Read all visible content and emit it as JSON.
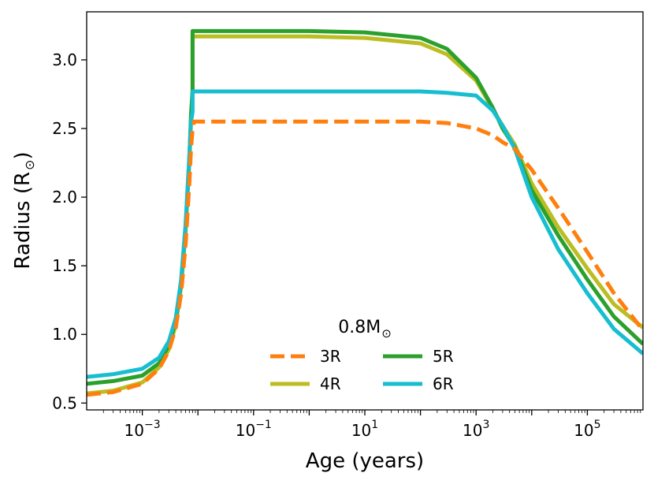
{
  "chart_data": {
    "type": "line",
    "xlabel": "Age (years)",
    "ylabel": "Radius (R",
    "ylabel_sub": "⊙",
    "ylabel_close": ")",
    "xscale": "log",
    "xlim": [
      0.0001,
      1000000
    ],
    "ylim": [
      0.45,
      3.35
    ],
    "grid": false,
    "x_ticks": [
      {
        "value": 0.001,
        "base": "10",
        "exp": "−3"
      },
      {
        "value": 0.1,
        "base": "10",
        "exp": "−1"
      },
      {
        "value": 10,
        "base": "10",
        "exp": "1"
      },
      {
        "value": 1000,
        "base": "10",
        "exp": "3"
      },
      {
        "value": 100000,
        "base": "10",
        "exp": "5"
      }
    ],
    "y_ticks": [
      {
        "value": 0.5,
        "label": "0.5"
      },
      {
        "value": 1.0,
        "label": "1.0"
      },
      {
        "value": 1.5,
        "label": "1.5"
      },
      {
        "value": 2.0,
        "label": "2.0"
      },
      {
        "value": 2.5,
        "label": "2.5"
      },
      {
        "value": 3.0,
        "label": "3.0"
      }
    ],
    "legend": {
      "title": "0.8M",
      "title_sub": "⊙",
      "placement": "lower-center",
      "columns": 2
    },
    "series": [
      {
        "name": "3R",
        "color": "#ff7f0e",
        "style": "dashed",
        "x": [
          0.0001,
          0.0003,
          0.001,
          0.002,
          0.003,
          0.004,
          0.005,
          0.006,
          0.007,
          0.0075,
          0.008,
          0.0085,
          0.01,
          0.1,
          1,
          10,
          100,
          300,
          1000,
          2000,
          3000,
          5000,
          10000,
          30000,
          100000,
          300000,
          1000000
        ],
        "y": [
          0.56,
          0.58,
          0.64,
          0.75,
          0.88,
          1.05,
          1.3,
          1.65,
          2.1,
          2.35,
          2.5,
          2.55,
          2.55,
          2.55,
          2.55,
          2.55,
          2.55,
          2.54,
          2.5,
          2.45,
          2.4,
          2.35,
          2.2,
          1.92,
          1.6,
          1.3,
          1.03
        ]
      },
      {
        "name": "4R",
        "color": "#bcbd22",
        "style": "solid",
        "x": [
          0.0001,
          0.0003,
          0.001,
          0.002,
          0.003,
          0.004,
          0.005,
          0.006,
          0.007,
          0.0075,
          0.008,
          0.00801,
          0.01,
          0.1,
          1,
          10,
          100,
          300,
          1000,
          2000,
          3000,
          5000,
          10000,
          30000,
          100000,
          300000,
          1000000
        ],
        "y": [
          0.57,
          0.59,
          0.65,
          0.76,
          0.89,
          1.07,
          1.35,
          1.75,
          2.25,
          2.55,
          2.75,
          3.17,
          3.17,
          3.17,
          3.17,
          3.16,
          3.12,
          3.04,
          2.85,
          2.64,
          2.52,
          2.38,
          2.1,
          1.78,
          1.48,
          1.22,
          1.05
        ]
      },
      {
        "name": "5R",
        "color": "#2ca02c",
        "style": "solid",
        "x": [
          0.0001,
          0.0003,
          0.001,
          0.002,
          0.003,
          0.004,
          0.005,
          0.006,
          0.007,
          0.0075,
          0.008,
          0.00801,
          0.01,
          0.1,
          1,
          10,
          100,
          300,
          1000,
          2000,
          3000,
          5000,
          10000,
          30000,
          100000,
          300000,
          1000000
        ],
        "y": [
          0.64,
          0.66,
          0.7,
          0.79,
          0.92,
          1.1,
          1.38,
          1.78,
          2.28,
          2.6,
          2.78,
          3.21,
          3.21,
          3.21,
          3.21,
          3.2,
          3.16,
          3.08,
          2.87,
          2.65,
          2.5,
          2.36,
          2.05,
          1.72,
          1.4,
          1.13,
          0.93
        ]
      },
      {
        "name": "6R",
        "color": "#17becf",
        "style": "solid",
        "x": [
          0.0001,
          0.0003,
          0.001,
          0.002,
          0.003,
          0.004,
          0.005,
          0.006,
          0.007,
          0.0075,
          0.008,
          0.00801,
          0.01,
          0.1,
          1,
          10,
          100,
          300,
          1000,
          2000,
          3000,
          5000,
          10000,
          30000,
          100000,
          300000,
          1000000
        ],
        "y": [
          0.69,
          0.71,
          0.75,
          0.83,
          0.95,
          1.12,
          1.4,
          1.8,
          2.3,
          2.55,
          2.62,
          2.77,
          2.77,
          2.77,
          2.77,
          2.77,
          2.77,
          2.76,
          2.74,
          2.63,
          2.52,
          2.35,
          2.0,
          1.62,
          1.3,
          1.04,
          0.86
        ]
      }
    ]
  }
}
